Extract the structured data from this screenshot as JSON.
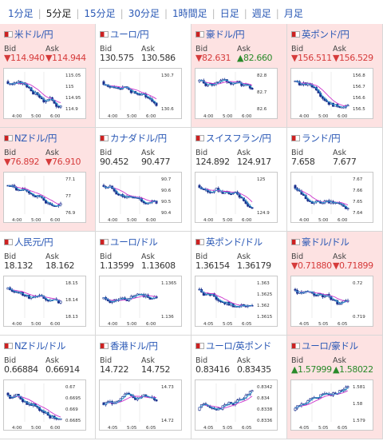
{
  "tabs": [
    "1分足",
    "5分足",
    "15分足",
    "30分足",
    "1時間足",
    "日足",
    "週足",
    "月足"
  ],
  "active_tab": "5分足",
  "cards": [
    {
      "title": "米ドル/円",
      "bid": "▼114.940",
      "ask": "▼114.944",
      "bid_dir": "down",
      "ask_dir": "down",
      "pink": true,
      "ticks": [
        "115.05",
        "115",
        "114.95",
        "114.9"
      ],
      "xticks": [
        "4:00",
        "5:00",
        "6:00"
      ],
      "trend": "down"
    },
    {
      "title": "ユーロ/円",
      "bid": "130.575",
      "ask": "130.586",
      "bid_dir": "neutral",
      "ask_dir": "neutral",
      "pink": false,
      "ticks": [
        "130.7",
        "130.6"
      ],
      "xticks": [
        "4:00",
        "5:00",
        "6:00"
      ],
      "trend": "down"
    },
    {
      "title": "豪ドル/円",
      "bid": "▼82.631",
      "ask": "▲82.660",
      "bid_dir": "down",
      "ask_dir": "up",
      "pink": true,
      "ticks": [
        "82.8",
        "82.7",
        "82.6"
      ],
      "xticks": [
        "4:00",
        "5:00",
        "6:00"
      ],
      "trend": "down"
    },
    {
      "title": "英ポンド/円",
      "bid": "▼156.511",
      "ask": "▼156.529",
      "bid_dir": "down",
      "ask_dir": "down",
      "pink": true,
      "ticks": [
        "156.8",
        "156.7",
        "156.6",
        "156.5"
      ],
      "xticks": [
        "4:00",
        "5:00",
        "6:00"
      ],
      "trend": "down"
    },
    {
      "title": "NZドル/円",
      "bid": "▼76.892",
      "ask": "▼76.910",
      "bid_dir": "down",
      "ask_dir": "down",
      "pink": true,
      "ticks": [
        "77.1",
        "77",
        "76.9"
      ],
      "xticks": [
        "4:00",
        "5:00",
        "6:00"
      ],
      "trend": "down"
    },
    {
      "title": "カナダドル/円",
      "bid": "90.452",
      "ask": "90.477",
      "bid_dir": "neutral",
      "ask_dir": "neutral",
      "pink": false,
      "ticks": [
        "90.7",
        "90.6",
        "90.5",
        "90.4"
      ],
      "xticks": [
        "4:00",
        "5:00",
        "6:00"
      ],
      "trend": "down"
    },
    {
      "title": "スイスフラン/円",
      "bid": "124.892",
      "ask": "124.917",
      "bid_dir": "neutral",
      "ask_dir": "neutral",
      "pink": false,
      "ticks": [
        "125",
        "124.9"
      ],
      "xticks": [
        "4:00",
        "5:00",
        "6:00"
      ],
      "trend": "down"
    },
    {
      "title": "ランド/円",
      "bid": "7.658",
      "ask": "7.677",
      "bid_dir": "neutral",
      "ask_dir": "neutral",
      "pink": false,
      "ticks": [
        "7.67",
        "7.66",
        "7.65",
        "7.64"
      ],
      "xticks": [
        "4:00",
        "5:00",
        "6:00"
      ],
      "trend": "down"
    },
    {
      "title": "人民元/円",
      "bid": "18.132",
      "ask": "18.162",
      "bid_dir": "neutral",
      "ask_dir": "neutral",
      "pink": false,
      "ticks": [
        "18.15",
        "18.14",
        "18.13"
      ],
      "xticks": [
        "4:00",
        "5:00",
        "6:00"
      ],
      "trend": "down"
    },
    {
      "title": "ユーロ/ドル",
      "bid": "1.13599",
      "ask": "1.13608",
      "bid_dir": "neutral",
      "ask_dir": "neutral",
      "pink": false,
      "ticks": [
        "1.1365",
        "1.136"
      ],
      "xticks": [
        "4:00",
        "5:00",
        "6:00"
      ],
      "trend": "flat"
    },
    {
      "title": "英ポンド/ドル",
      "bid": "1.36154",
      "ask": "1.36179",
      "bid_dir": "neutral",
      "ask_dir": "neutral",
      "pink": false,
      "ticks": [
        "1.363",
        "1.3625",
        "1.362",
        "1.3615"
      ],
      "xticks": [
        "4:05",
        "5:05",
        "6:05"
      ],
      "trend": "down"
    },
    {
      "title": "豪ドル/ドル",
      "bid": "▼0.71880",
      "ask": "▼0.71899",
      "bid_dir": "down",
      "ask_dir": "down",
      "pink": true,
      "ticks": [
        "0.72",
        "0.719"
      ],
      "xticks": [
        "4:05",
        "5:05",
        "6:05"
      ],
      "trend": "down"
    },
    {
      "title": "NZドル/ドル",
      "bid": "0.66884",
      "ask": "0.66914",
      "bid_dir": "neutral",
      "ask_dir": "neutral",
      "pink": false,
      "ticks": [
        "0.67",
        "0.6695",
        "0.669",
        "0.6685"
      ],
      "xticks": [
        "4:00",
        "5:00",
        "6:00"
      ],
      "trend": "down"
    },
    {
      "title": "香港ドル/円",
      "bid": "14.722",
      "ask": "14.752",
      "bid_dir": "neutral",
      "ask_dir": "neutral",
      "pink": false,
      "ticks": [
        "14.73",
        "14.72"
      ],
      "xticks": [
        "4:05",
        "5:05",
        "6:05"
      ],
      "trend": "flat"
    },
    {
      "title": "ユーロ/英ポンド",
      "bid": "0.83416",
      "ask": "0.83435",
      "bid_dir": "neutral",
      "ask_dir": "neutral",
      "pink": false,
      "ticks": [
        "0.8342",
        "0.834",
        "0.8338",
        "0.8336"
      ],
      "xticks": [
        "4:05",
        "5:05",
        "6:05"
      ],
      "trend": "up"
    },
    {
      "title": "ユーロ/豪ドル",
      "bid": "▲1.57999",
      "ask": "▲1.58022",
      "bid_dir": "up",
      "ask_dir": "up",
      "pink": true,
      "ticks": [
        "1.581",
        "1.58",
        "1.579"
      ],
      "xticks": [
        "4:05",
        "5:05",
        "6:05"
      ],
      "trend": "up"
    }
  ],
  "labels": {
    "bid": "Bid",
    "ask": "Ask"
  },
  "colors": {
    "link": "#2a58b5",
    "down": "#d63b3b",
    "up": "#2a8a2a",
    "pink": "#fde2e2",
    "ma": "#cc33cc",
    "ma2": "#2aa4d6",
    "candle": "#1a2f8c"
  }
}
